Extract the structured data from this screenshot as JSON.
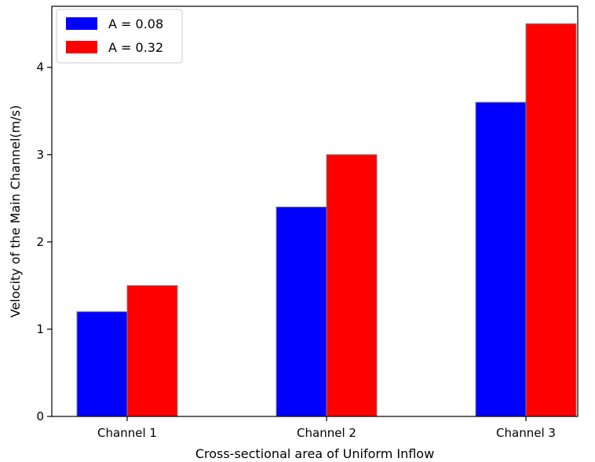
{
  "chart_data": {
    "type": "bar",
    "title": "",
    "xlabel": "Cross-sectional area of Uniform Inflow",
    "ylabel": "Velocity of the Main Channel(m/s)",
    "categories": [
      "Channel 1",
      "Channel 2",
      "Channel 3"
    ],
    "series": [
      {
        "name": "A = 0.08",
        "color": "#0000ff",
        "values": [
          1.2,
          2.4,
          3.6
        ]
      },
      {
        "name": "A = 0.32",
        "color": "#ff0000",
        "values": [
          1.5,
          3.0,
          4.5
        ]
      }
    ],
    "ylim": [
      0,
      4.7
    ],
    "yticks": [
      0,
      1,
      2,
      3,
      4
    ],
    "legend": "top-left",
    "grid": false
  }
}
